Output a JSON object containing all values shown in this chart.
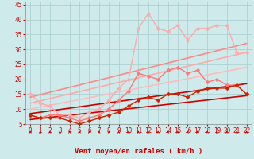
{
  "xlabel": "Vent moyen/en rafales ( km/h )",
  "xlim": [
    -0.5,
    22.5
  ],
  "ylim": [
    5,
    46
  ],
  "yticks": [
    5,
    10,
    15,
    20,
    25,
    30,
    35,
    40,
    45
  ],
  "xticks": [
    0,
    1,
    2,
    3,
    4,
    5,
    6,
    7,
    8,
    9,
    10,
    11,
    12,
    13,
    14,
    15,
    16,
    17,
    18,
    19,
    20,
    21,
    22
  ],
  "background_color": "#ceeaea",
  "grid_color": "#a8cccc",
  "lines": [
    {
      "x": [
        0,
        1,
        2,
        3,
        4,
        5,
        6,
        7,
        8,
        9,
        10,
        11,
        12,
        13,
        14,
        15,
        16,
        17,
        18,
        19,
        20,
        21,
        22
      ],
      "y": [
        15,
        12,
        11,
        8,
        8,
        7,
        9,
        10,
        13,
        17,
        20,
        37,
        42,
        37,
        36,
        38,
        33,
        37,
        37,
        38,
        38,
        29,
        29
      ],
      "color": "#ffaaaa",
      "linewidth": 1.0,
      "marker": "D",
      "markersize": 2.5,
      "zorder": 5
    },
    {
      "x": [
        0,
        1,
        2,
        3,
        4,
        5,
        6,
        7,
        8,
        9,
        10,
        11,
        12,
        13,
        14,
        15,
        16,
        17,
        18,
        19,
        20,
        21,
        22
      ],
      "y": [
        8,
        7,
        8,
        8,
        7,
        6,
        7,
        8,
        10,
        13,
        16,
        22,
        21,
        20,
        23,
        24,
        22,
        23,
        19,
        20,
        18,
        18,
        15
      ],
      "color": "#ff7777",
      "linewidth": 1.0,
      "marker": "D",
      "markersize": 2.5,
      "zorder": 5
    },
    {
      "x": [
        0,
        1,
        2,
        3,
        4,
        5,
        6,
        7,
        8,
        9,
        10,
        11,
        12,
        13,
        14,
        15,
        16,
        17,
        18,
        19,
        20,
        21,
        22
      ],
      "y": [
        8,
        7,
        7,
        7,
        6,
        5,
        6,
        7,
        8,
        9,
        11,
        13,
        14,
        13,
        15,
        15,
        14,
        16,
        17,
        17,
        17,
        18,
        15
      ],
      "color": "#cc2200",
      "linewidth": 1.0,
      "marker": "D",
      "markersize": 2.5,
      "zorder": 5
    },
    {
      "x": [
        0,
        22
      ],
      "y": [
        6.5,
        14.5
      ],
      "color": "#cc0000",
      "linewidth": 1.2,
      "marker": null,
      "markersize": 0,
      "zorder": 3
    },
    {
      "x": [
        0,
        22
      ],
      "y": [
        8.5,
        18.5
      ],
      "color": "#cc0000",
      "linewidth": 1.2,
      "marker": null,
      "markersize": 0,
      "zorder": 3
    },
    {
      "x": [
        0,
        22
      ],
      "y": [
        10,
        24
      ],
      "color": "#ffbbbb",
      "linewidth": 1.2,
      "marker": null,
      "markersize": 0,
      "zorder": 3
    },
    {
      "x": [
        0,
        22
      ],
      "y": [
        12,
        29
      ],
      "color": "#ffaaaa",
      "linewidth": 1.2,
      "marker": null,
      "markersize": 0,
      "zorder": 3
    },
    {
      "x": [
        0,
        22
      ],
      "y": [
        14,
        32
      ],
      "color": "#ff8888",
      "linewidth": 1.2,
      "marker": null,
      "markersize": 0,
      "zorder": 3
    }
  ],
  "arrow_color": "#cc0000",
  "font_color": "#cc0000",
  "axis_fontsize": 6.5,
  "tick_fontsize": 5.5
}
